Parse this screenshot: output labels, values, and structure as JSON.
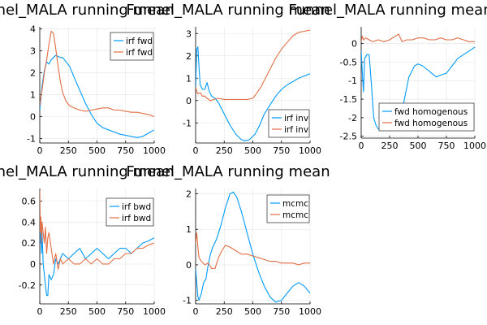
{
  "chart_data": [
    {
      "type": "line",
      "title": "Funnel_MALA running mean",
      "xlim": [
        0,
        1000
      ],
      "ylim": [
        -1.2,
        4.1
      ],
      "xticks": [
        0,
        250,
        500,
        750,
        1000
      ],
      "yticks": [
        -1,
        0,
        1,
        2,
        3,
        4
      ],
      "grid": true,
      "legend_position": "top-right",
      "series": [
        {
          "name": "irf fwd",
          "color": "#009AFA",
          "x": [
            0,
            10,
            20,
            40,
            60,
            80,
            100,
            120,
            140,
            160,
            180,
            200,
            230,
            260,
            300,
            350,
            400,
            450,
            500,
            550,
            600,
            650,
            700,
            750,
            800,
            850,
            900,
            950,
            1000
          ],
          "y": [
            0.3,
            0.8,
            1.4,
            2.1,
            2.5,
            2.4,
            2.6,
            2.7,
            2.8,
            2.75,
            2.7,
            2.7,
            2.5,
            2.3,
            1.8,
            1.2,
            0.6,
            0.1,
            -0.3,
            -0.5,
            -0.6,
            -0.7,
            -0.8,
            -0.85,
            -0.9,
            -0.95,
            -0.9,
            -0.75,
            -0.6
          ]
        },
        {
          "name": "irf fwd",
          "color": "#E26F46",
          "x": [
            0,
            10,
            20,
            40,
            60,
            80,
            100,
            120,
            140,
            160,
            180,
            200,
            230,
            260,
            300,
            350,
            400,
            450,
            500,
            550,
            600,
            650,
            700,
            750,
            800,
            850,
            900,
            950,
            1000
          ],
          "y": [
            0.5,
            0.9,
            1.2,
            2.0,
            2.6,
            3.3,
            3.9,
            3.8,
            3.1,
            2.3,
            1.6,
            1.1,
            0.7,
            0.5,
            0.4,
            0.3,
            0.25,
            0.3,
            0.35,
            0.4,
            0.4,
            0.3,
            0.3,
            0.25,
            0.2,
            0.2,
            0.15,
            0.1,
            0.0
          ]
        }
      ]
    },
    {
      "type": "line",
      "title": "Funnel_MALA running mean",
      "xlim": [
        0,
        1000
      ],
      "ylim": [
        -1.9,
        3.3
      ],
      "xticks": [
        0,
        250,
        500,
        750,
        1000
      ],
      "yticks": [
        -1,
        0,
        1,
        2,
        3
      ],
      "grid": true,
      "legend_position": "bottom-right",
      "series": [
        {
          "name": "irf inv",
          "color": "#009AFA",
          "x": [
            0,
            10,
            20,
            30,
            40,
            60,
            80,
            100,
            120,
            140,
            170,
            200,
            250,
            300,
            350,
            400,
            430,
            470,
            520,
            560,
            600,
            650,
            700,
            750,
            800,
            850,
            900,
            950,
            1000
          ],
          "y": [
            0.5,
            2.3,
            2.4,
            1.5,
            0.7,
            0.5,
            0.5,
            0.8,
            0.4,
            0.2,
            0.1,
            -0.1,
            -0.6,
            -1.1,
            -1.5,
            -1.75,
            -1.8,
            -1.75,
            -1.5,
            -1.1,
            -0.6,
            -0.2,
            0.2,
            0.5,
            0.7,
            0.85,
            1.0,
            1.1,
            1.2
          ]
        },
        {
          "name": "irf inv",
          "color": "#E26F46",
          "x": [
            0,
            10,
            20,
            40,
            60,
            80,
            100,
            130,
            160,
            200,
            250,
            300,
            350,
            400,
            450,
            500,
            530,
            570,
            600,
            650,
            700,
            750,
            800,
            850,
            900,
            950,
            1000
          ],
          "y": [
            0.6,
            0.4,
            0.3,
            0.35,
            0.2,
            0.2,
            0.1,
            0.0,
            0.05,
            0.1,
            0.05,
            0.05,
            0.05,
            0.05,
            0.05,
            0.1,
            0.3,
            0.6,
            0.9,
            1.4,
            1.9,
            2.3,
            2.6,
            2.9,
            3.05,
            3.1,
            3.15
          ]
        }
      ]
    },
    {
      "type": "line",
      "title": "Funnel_MALA running mean",
      "xlim": [
        0,
        1000
      ],
      "ylim": [
        -2.55,
        0.45
      ],
      "xticks": [
        0,
        250,
        500,
        750,
        1000
      ],
      "yticks": [
        -2.5,
        -2.0,
        -1.5,
        -1.0,
        -0.5,
        0.0
      ],
      "grid": true,
      "legend_position": "bottom-right",
      "series": [
        {
          "name": "fwd homogenous",
          "color": "#009AFA",
          "x": [
            0,
            10,
            20,
            30,
            50,
            70,
            90,
            110,
            130,
            150,
            180,
            220,
            260,
            300,
            340,
            380,
            420,
            470,
            500,
            540,
            580,
            620,
            660,
            700,
            750,
            800,
            850,
            900,
            950,
            1000
          ],
          "y": [
            -0.2,
            -0.8,
            -1.3,
            -0.4,
            -0.3,
            -0.3,
            -1.1,
            -2.0,
            -2.2,
            -2.3,
            -2.3,
            -2.3,
            -2.3,
            -2.3,
            -2.2,
            -1.5,
            -0.9,
            -0.6,
            -0.55,
            -0.6,
            -0.7,
            -0.8,
            -0.9,
            -0.85,
            -0.8,
            -0.6,
            -0.4,
            -0.3,
            -0.2,
            -0.1
          ]
        },
        {
          "name": "fwd homogenous",
          "color": "#E26F46",
          "x": [
            0,
            10,
            20,
            40,
            70,
            100,
            150,
            200,
            250,
            300,
            330,
            360,
            400,
            450,
            500,
            550,
            600,
            650,
            700,
            750,
            800,
            850,
            900,
            950,
            1000
          ],
          "y": [
            0.05,
            0.2,
            0.1,
            0.15,
            0.1,
            0.05,
            0.1,
            0.05,
            0.1,
            0.2,
            0.25,
            0.05,
            0.1,
            0.1,
            0.15,
            0.15,
            0.1,
            0.1,
            0.15,
            0.1,
            0.1,
            0.15,
            0.1,
            0.05,
            0.05
          ]
        }
      ]
    },
    {
      "type": "line",
      "title": "Funnel_MALA running mean",
      "xlim": [
        0,
        1000
      ],
      "ylim": [
        -0.38,
        0.72
      ],
      "xticks": [
        0,
        250,
        500,
        750,
        1000
      ],
      "yticks": [
        -0.2,
        0.0,
        0.2,
        0.4,
        0.6
      ],
      "grid": true,
      "legend_position": "top-right",
      "series": [
        {
          "name": "irf bwd",
          "color": "#009AFA",
          "x": [
            0,
            5,
            10,
            15,
            20,
            30,
            40,
            50,
            60,
            70,
            80,
            100,
            120,
            140,
            160,
            180,
            200,
            250,
            300,
            350,
            400,
            450,
            500,
            550,
            600,
            650,
            700,
            750,
            800,
            850,
            900,
            950,
            1000
          ],
          "y": [
            0.6,
            0.2,
            0.4,
            0.1,
            0.3,
            0.0,
            -0.1,
            -0.2,
            -0.3,
            -0.3,
            -0.1,
            -0.15,
            -0.1,
            0.05,
            0.0,
            0.05,
            0.1,
            0.05,
            0.1,
            0.15,
            0.05,
            0.1,
            0.15,
            0.1,
            0.05,
            0.1,
            0.15,
            0.15,
            0.1,
            0.15,
            0.2,
            0.22,
            0.25
          ]
        },
        {
          "name": "irf bwd",
          "color": "#E26F46",
          "x": [
            0,
            5,
            10,
            15,
            20,
            30,
            40,
            50,
            60,
            70,
            80,
            100,
            120,
            140,
            160,
            180,
            200,
            250,
            300,
            350,
            400,
            450,
            500,
            550,
            600,
            650,
            700,
            750,
            800,
            850,
            900,
            950,
            1000
          ],
          "y": [
            0.7,
            0.3,
            0.45,
            0.2,
            0.4,
            0.3,
            0.2,
            0.35,
            0.1,
            0.25,
            0.3,
            0.15,
            0.0,
            0.1,
            -0.05,
            0.05,
            0.0,
            0.05,
            0.0,
            0.0,
            0.05,
            0.0,
            0.05,
            0.0,
            0.0,
            0.05,
            0.05,
            0.1,
            0.1,
            0.15,
            0.15,
            0.18,
            0.2
          ]
        }
      ]
    },
    {
      "type": "line",
      "title": "Funnel_MALA running mean",
      "xlim": [
        0,
        1000
      ],
      "ylim": [
        -1.1,
        2.15
      ],
      "xticks": [
        0,
        250,
        500,
        750,
        1000
      ],
      "yticks": [
        -1,
        0,
        1,
        2
      ],
      "grid": true,
      "legend_position": "top-right",
      "series": [
        {
          "name": "mcmc",
          "color": "#009AFA",
          "x": [
            0,
            10,
            20,
            30,
            50,
            70,
            90,
            110,
            130,
            150,
            180,
            220,
            260,
            300,
            330,
            360,
            400,
            450,
            500,
            550,
            600,
            650,
            700,
            750,
            800,
            850,
            900,
            950,
            1000
          ],
          "y": [
            -0.1,
            -0.5,
            -0.9,
            -1.0,
            -0.8,
            -0.5,
            -0.4,
            0.0,
            0.3,
            0.5,
            0.7,
            1.1,
            1.6,
            2.0,
            2.05,
            1.9,
            1.5,
            0.9,
            0.3,
            -0.2,
            -0.6,
            -0.9,
            -1.05,
            -1.0,
            -0.8,
            -0.6,
            -0.5,
            -0.6,
            -0.8
          ]
        },
        {
          "name": "mcmc",
          "color": "#E26F46",
          "x": [
            0,
            10,
            20,
            30,
            50,
            80,
            110,
            140,
            170,
            200,
            230,
            260,
            300,
            350,
            400,
            450,
            500,
            550,
            600,
            650,
            700,
            750,
            800,
            850,
            900,
            950,
            1000
          ],
          "y": [
            0.6,
            0.9,
            0.5,
            0.2,
            0.1,
            0.0,
            0.05,
            -0.1,
            -0.1,
            0.2,
            0.4,
            0.55,
            0.5,
            0.4,
            0.3,
            0.3,
            0.25,
            0.2,
            0.15,
            0.1,
            0.1,
            0.05,
            0.05,
            0.05,
            0.0,
            0.05,
            0.05
          ]
        }
      ]
    }
  ]
}
